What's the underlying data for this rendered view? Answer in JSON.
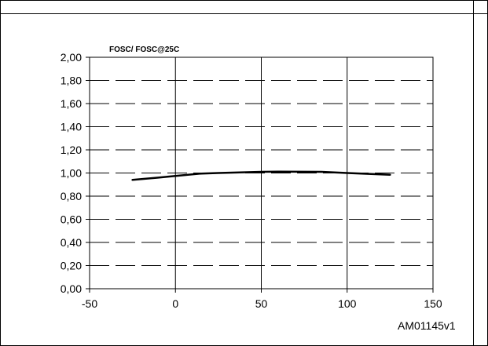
{
  "chart_data": {
    "type": "line",
    "title": "",
    "ylabel": "FOSC/ FOSC@25C",
    "xlabel": "",
    "xlim": [
      -50,
      150
    ],
    "ylim": [
      0,
      2
    ],
    "x_ticks": [
      -50,
      0,
      50,
      100,
      150
    ],
    "y_ticks": [
      0,
      0.2,
      0.4,
      0.6,
      0.8,
      1.0,
      1.2,
      1.4,
      1.6,
      1.8,
      2.0
    ],
    "x_tick_labels": [
      "-50",
      "0",
      "50",
      "100",
      "150"
    ],
    "y_tick_labels": [
      "0,00",
      "0,20",
      "0,40",
      "0,60",
      "0,80",
      "1,00",
      "1,20",
      "1,40",
      "1,60",
      "1,80",
      "2,00"
    ],
    "grid": {
      "vertical": "solid",
      "horizontal": "dashed"
    },
    "series": [
      {
        "color": "#000000",
        "x": [
          -25,
          -10,
          0,
          15,
          25,
          50,
          60,
          85,
          100,
          125
        ],
        "y": [
          0.94,
          0.96,
          0.975,
          0.995,
          1.0,
          1.01,
          1.012,
          1.01,
          1.0,
          0.985
        ]
      }
    ]
  },
  "reference_code": "AM01145v1"
}
